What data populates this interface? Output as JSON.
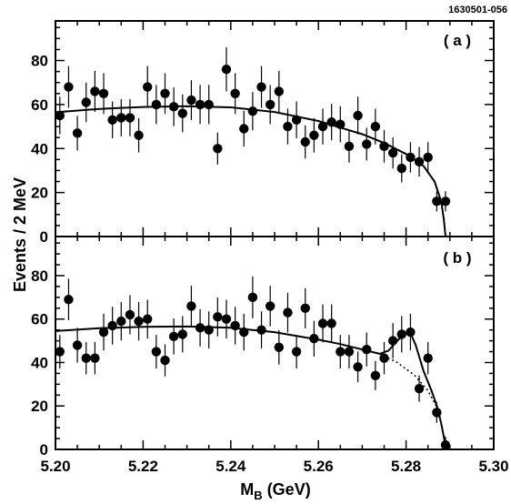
{
  "figure_id": "1630501-056",
  "chart_data": {
    "type": "scatter",
    "ylabel": "Events / 2 MeV",
    "xlabel_main": "M",
    "xlabel_sub": "B",
    "xlabel_unit": " (GeV)",
    "xlim": [
      5.2,
      5.3
    ],
    "x_ticks": [
      "5.20",
      "5.22",
      "5.24",
      "5.26",
      "5.28",
      "5.30"
    ],
    "x_tick_values": [
      5.2,
      5.22,
      5.24,
      5.26,
      5.28,
      5.3
    ],
    "panels": [
      {
        "label": "( a )",
        "ylim": [
          0,
          98
        ],
        "y_ticks": [
          "0",
          "20",
          "40",
          "60",
          "80"
        ],
        "y_tick_values": [
          0,
          20,
          40,
          60,
          80
        ],
        "points": [
          [
            5.201,
            55
          ],
          [
            5.203,
            68
          ],
          [
            5.205,
            47
          ],
          [
            5.207,
            61
          ],
          [
            5.209,
            66
          ],
          [
            5.211,
            65
          ],
          [
            5.213,
            53
          ],
          [
            5.215,
            54
          ],
          [
            5.217,
            54
          ],
          [
            5.219,
            46
          ],
          [
            5.221,
            68
          ],
          [
            5.223,
            60
          ],
          [
            5.225,
            65
          ],
          [
            5.227,
            59
          ],
          [
            5.229,
            56
          ],
          [
            5.231,
            62
          ],
          [
            5.233,
            60
          ],
          [
            5.235,
            60
          ],
          [
            5.237,
            40
          ],
          [
            5.239,
            76
          ],
          [
            5.241,
            65
          ],
          [
            5.243,
            49
          ],
          [
            5.245,
            57
          ],
          [
            5.247,
            68
          ],
          [
            5.249,
            60
          ],
          [
            5.251,
            66
          ],
          [
            5.253,
            50
          ],
          [
            5.255,
            53
          ],
          [
            5.257,
            43
          ],
          [
            5.259,
            46
          ],
          [
            5.261,
            50
          ],
          [
            5.263,
            52
          ],
          [
            5.265,
            51
          ],
          [
            5.267,
            41
          ],
          [
            5.269,
            55
          ],
          [
            5.271,
            42
          ],
          [
            5.273,
            50
          ],
          [
            5.275,
            41
          ],
          [
            5.277,
            38
          ],
          [
            5.279,
            31
          ],
          [
            5.281,
            36
          ],
          [
            5.283,
            34
          ],
          [
            5.285,
            36
          ],
          [
            5.287,
            16
          ],
          [
            5.289,
            16
          ]
        ],
        "fit_curve": [
          [
            5.2,
            56.5
          ],
          [
            5.21,
            58.0
          ],
          [
            5.22,
            58.9
          ],
          [
            5.23,
            59.2
          ],
          [
            5.24,
            58.7
          ],
          [
            5.25,
            56.6
          ],
          [
            5.26,
            52.5
          ],
          [
            5.27,
            46.5
          ],
          [
            5.275,
            42.5
          ],
          [
            5.28,
            37.5
          ],
          [
            5.284,
            32.0
          ],
          [
            5.2865,
            25.0
          ],
          [
            5.288,
            16.0
          ],
          [
            5.2886,
            8.0
          ],
          [
            5.289,
            0
          ]
        ]
      },
      {
        "label": "( b )",
        "ylim": [
          0,
          98
        ],
        "y_ticks": [
          "0",
          "20",
          "40",
          "60",
          "80"
        ],
        "y_tick_values": [
          0,
          20,
          40,
          60,
          80
        ],
        "points": [
          [
            5.201,
            45
          ],
          [
            5.203,
            69
          ],
          [
            5.205,
            48
          ],
          [
            5.207,
            42
          ],
          [
            5.209,
            42
          ],
          [
            5.211,
            54
          ],
          [
            5.213,
            57
          ],
          [
            5.215,
            59
          ],
          [
            5.217,
            62
          ],
          [
            5.219,
            59
          ],
          [
            5.221,
            60
          ],
          [
            5.223,
            45
          ],
          [
            5.225,
            41
          ],
          [
            5.227,
            52
          ],
          [
            5.229,
            53
          ],
          [
            5.231,
            66
          ],
          [
            5.233,
            56
          ],
          [
            5.235,
            55
          ],
          [
            5.237,
            61
          ],
          [
            5.239,
            60
          ],
          [
            5.241,
            57
          ],
          [
            5.243,
            54
          ],
          [
            5.245,
            70
          ],
          [
            5.247,
            55
          ],
          [
            5.249,
            66
          ],
          [
            5.251,
            47
          ],
          [
            5.253,
            63
          ],
          [
            5.255,
            45
          ],
          [
            5.257,
            65
          ],
          [
            5.259,
            51
          ],
          [
            5.261,
            58
          ],
          [
            5.263,
            58
          ],
          [
            5.265,
            45
          ],
          [
            5.267,
            45
          ],
          [
            5.269,
            38
          ],
          [
            5.271,
            46
          ],
          [
            5.273,
            34
          ],
          [
            5.275,
            42
          ],
          [
            5.277,
            50
          ],
          [
            5.279,
            53
          ],
          [
            5.281,
            54
          ],
          [
            5.283,
            28
          ],
          [
            5.285,
            42
          ],
          [
            5.287,
            17
          ],
          [
            5.289,
            2
          ]
        ],
        "fit_curve": [
          [
            5.2,
            54.5
          ],
          [
            5.21,
            55.8
          ],
          [
            5.22,
            56.4
          ],
          [
            5.23,
            56.6
          ],
          [
            5.24,
            56.0
          ],
          [
            5.25,
            54.0
          ],
          [
            5.26,
            50.5
          ],
          [
            5.265,
            48.5
          ],
          [
            5.27,
            46.0
          ],
          [
            5.274,
            44.0
          ],
          [
            5.276,
            45.5
          ],
          [
            5.278,
            50.0
          ],
          [
            5.2795,
            53.0
          ],
          [
            5.2808,
            54.5
          ],
          [
            5.2822,
            48.0
          ],
          [
            5.284,
            36.0
          ],
          [
            5.2858,
            27.0
          ],
          [
            5.2872,
            19.0
          ],
          [
            5.288,
            12.0
          ],
          [
            5.2887,
            5.0
          ],
          [
            5.289,
            0
          ]
        ],
        "background_curve": [
          [
            5.274,
            44.0
          ],
          [
            5.278,
            40.0
          ],
          [
            5.282,
            34.0
          ],
          [
            5.285,
            27.0
          ],
          [
            5.287,
            19.5
          ],
          [
            5.288,
            12.0
          ],
          [
            5.2887,
            5.0
          ],
          [
            5.289,
            0
          ]
        ]
      }
    ]
  }
}
